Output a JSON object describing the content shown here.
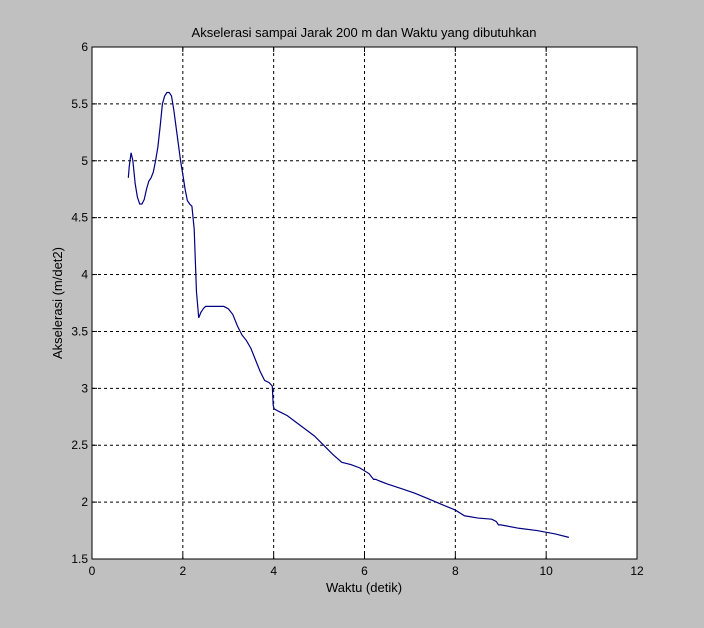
{
  "chart_data": {
    "type": "line",
    "title": "Akselerasi sampai Jarak 200 m dan Waktu yang dibutuhkan",
    "xlabel": "Waktu (detik)",
    "ylabel": "Akselerasi (m/det2)",
    "xlim": [
      0,
      12
    ],
    "ylim": [
      1.5,
      6
    ],
    "xticks": [
      0,
      2,
      4,
      6,
      8,
      10,
      12
    ],
    "yticks": [
      1.5,
      2,
      2.5,
      3,
      3.5,
      4,
      4.5,
      5,
      5.5,
      6
    ],
    "xtick_labels": [
      "0",
      "2",
      "4",
      "6",
      "8",
      "10",
      "12"
    ],
    "ytick_labels": [
      "1.5",
      "2",
      "2.5",
      "3",
      "3.5",
      "4",
      "4.5",
      "5",
      "5.5",
      "6"
    ],
    "grid": true,
    "series": [
      {
        "color": "#000080",
        "x": [
          0.8,
          0.82,
          0.86,
          0.9,
          0.95,
          1.0,
          1.05,
          1.1,
          1.15,
          1.2,
          1.25,
          1.3,
          1.35,
          1.4,
          1.45,
          1.5,
          1.55,
          1.6,
          1.65,
          1.7,
          1.75,
          1.8,
          1.85,
          1.9,
          1.95,
          2.0,
          2.05,
          2.1,
          2.15,
          2.2,
          2.25,
          2.3,
          2.35,
          2.38,
          2.4,
          2.42,
          2.45,
          2.5,
          2.6,
          2.7,
          2.8,
          2.9,
          3.0,
          3.1,
          3.2,
          3.3,
          3.4,
          3.5,
          3.6,
          3.7,
          3.8,
          3.9,
          3.97,
          3.99,
          4.01,
          4.1,
          4.3,
          4.5,
          4.7,
          4.9,
          5.1,
          5.3,
          5.5,
          5.7,
          5.9,
          6.1,
          6.2,
          6.25,
          6.3,
          6.5,
          6.8,
          7.1,
          7.4,
          7.7,
          8.0,
          8.2,
          8.5,
          8.8,
          8.9,
          8.95,
          9.0,
          9.4,
          9.8,
          10.2,
          10.5
        ],
        "y": [
          4.85,
          4.95,
          5.07,
          5.0,
          4.8,
          4.68,
          4.62,
          4.62,
          4.66,
          4.75,
          4.82,
          4.85,
          4.9,
          5.0,
          5.12,
          5.3,
          5.5,
          5.57,
          5.6,
          5.6,
          5.57,
          5.45,
          5.3,
          5.15,
          5.0,
          4.88,
          4.75,
          4.65,
          4.62,
          4.6,
          4.4,
          3.85,
          3.62,
          3.65,
          3.67,
          3.68,
          3.7,
          3.72,
          3.72,
          3.72,
          3.72,
          3.72,
          3.7,
          3.65,
          3.55,
          3.47,
          3.42,
          3.35,
          3.25,
          3.15,
          3.07,
          3.05,
          3.02,
          2.85,
          2.82,
          2.8,
          2.76,
          2.7,
          2.64,
          2.58,
          2.5,
          2.42,
          2.35,
          2.33,
          2.3,
          2.25,
          2.2,
          2.2,
          2.19,
          2.16,
          2.12,
          2.08,
          2.03,
          1.98,
          1.93,
          1.88,
          1.86,
          1.85,
          1.83,
          1.8,
          1.8,
          1.77,
          1.75,
          1.72,
          1.69
        ]
      }
    ]
  }
}
